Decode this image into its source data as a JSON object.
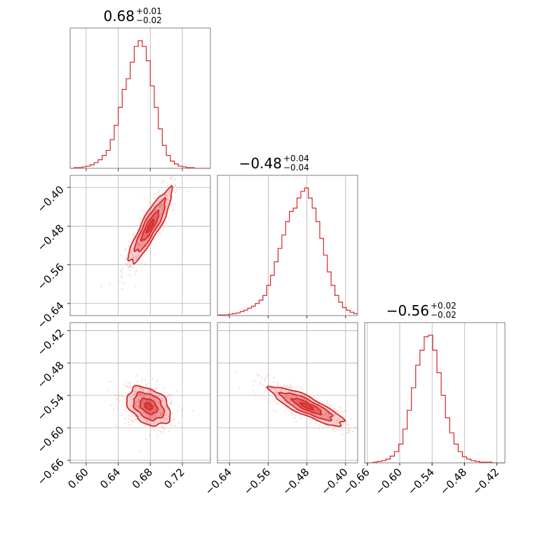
{
  "chart_data": {
    "type": "corner",
    "color": "#d62728",
    "parameters": [
      {
        "title_value": "0.68",
        "title_plus": "+0.01",
        "title_minus": "−0.02",
        "range": [
          0.58,
          0.755
        ],
        "ticks": [
          0.6,
          0.64,
          0.68,
          0.72
        ],
        "tick_labels": [
          "0.60",
          "0.64",
          "0.68",
          "0.72"
        ]
      },
      {
        "title_value": "−0.48",
        "title_plus": "+0.04",
        "title_minus": "−0.04",
        "range": [
          -0.665,
          -0.375
        ],
        "ticks": [
          -0.64,
          -0.56,
          -0.48,
          -0.4
        ],
        "tick_labels": [
          "−0.64",
          "−0.56",
          "−0.48",
          "−0.40"
        ]
      },
      {
        "title_value": "−0.56",
        "title_plus": "+0.02",
        "title_minus": "−0.02",
        "range": [
          -0.665,
          -0.405
        ],
        "ticks": [
          -0.66,
          -0.6,
          -0.54,
          -0.48,
          -0.42
        ],
        "tick_labels": [
          "−0.66",
          "−0.60",
          "−0.54",
          "−0.48",
          "−0.42"
        ]
      }
    ],
    "histograms": [
      {
        "param": 0,
        "counts": [
          0,
          1,
          1,
          2,
          3,
          5,
          8,
          12,
          18,
          25,
          40,
          60,
          85,
          110,
          125,
          148,
          170,
          178,
          170,
          150,
          115,
          85,
          55,
          32,
          18,
          10,
          6,
          3,
          2,
          1,
          1,
          0,
          0,
          0,
          0
        ]
      },
      {
        "param": 1,
        "counts": [
          1,
          1,
          1,
          2,
          3,
          4,
          6,
          8,
          11,
          14,
          18,
          23,
          30,
          45,
          60,
          80,
          100,
          120,
          140,
          155,
          160,
          175,
          185,
          190,
          175,
          160,
          140,
          115,
          90,
          65,
          45,
          30,
          20,
          12,
          8,
          5,
          3
        ]
      },
      {
        "param": 2,
        "counts": [
          0,
          0,
          1,
          2,
          3,
          5,
          9,
          15,
          25,
          45,
          70,
          100,
          130,
          150,
          168,
          170,
          150,
          120,
          90,
          60,
          40,
          25,
          15,
          8,
          5,
          3,
          2,
          1,
          1,
          1,
          0,
          0,
          0
        ]
      }
    ],
    "pairs": [
      {
        "x": 0,
        "y": 1,
        "center": [
          0.68,
          -0.48
        ],
        "sigma": [
          0.0135,
          0.038
        ],
        "rho": 0.88
      },
      {
        "x": 0,
        "y": 2,
        "center": [
          0.678,
          -0.56
        ],
        "sigma": [
          0.0135,
          0.018
        ],
        "rho": -0.35
      },
      {
        "x": 1,
        "y": 2,
        "center": [
          -0.48,
          -0.56
        ],
        "sigma": [
          0.038,
          0.018
        ],
        "rho": -0.85
      }
    ]
  }
}
